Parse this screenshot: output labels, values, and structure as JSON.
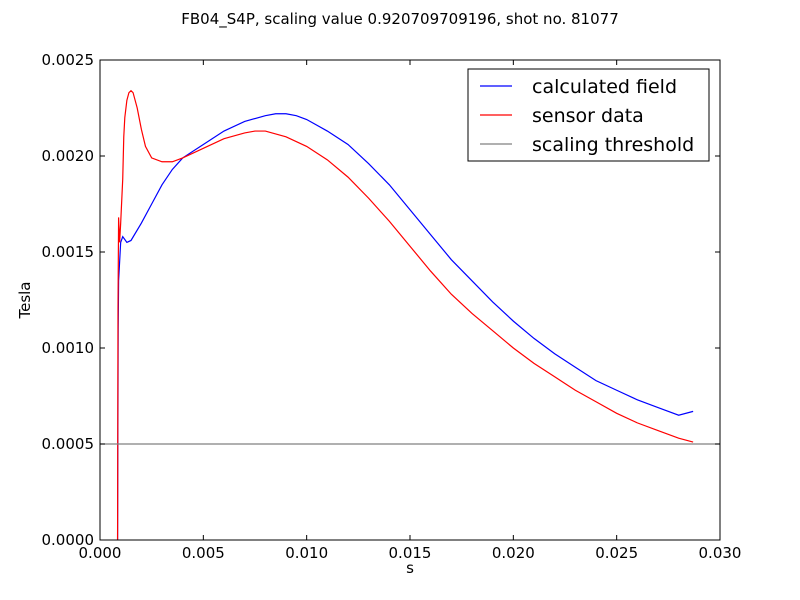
{
  "chart_data": {
    "type": "line",
    "title": "FB04_S4P, scaling value 0.920709709196, shot no. 81077",
    "xlabel": "s",
    "ylabel": "Tesla",
    "xlim": [
      0.0,
      0.03
    ],
    "ylim": [
      0.0,
      0.0025
    ],
    "x_ticks": [
      "0.000",
      "0.005",
      "0.010",
      "0.015",
      "0.020",
      "0.025",
      "0.030"
    ],
    "y_ticks": [
      "0.0000",
      "0.0005",
      "0.0010",
      "0.0015",
      "0.0020",
      "0.0025"
    ],
    "grid": false,
    "legend_position": "top-right",
    "series": [
      {
        "name": "calculated field",
        "color": "#0000ff",
        "points": [
          [
            0.00085,
            0.0
          ],
          [
            0.00088,
            0.0011
          ],
          [
            0.0009,
            0.00135
          ],
          [
            0.001,
            0.00155
          ],
          [
            0.0011,
            0.00158
          ],
          [
            0.0013,
            0.00155
          ],
          [
            0.0015,
            0.00156
          ],
          [
            0.002,
            0.00165
          ],
          [
            0.0025,
            0.00175
          ],
          [
            0.003,
            0.00185
          ],
          [
            0.0035,
            0.00193
          ],
          [
            0.004,
            0.00199
          ],
          [
            0.005,
            0.00206
          ],
          [
            0.006,
            0.00213
          ],
          [
            0.007,
            0.00218
          ],
          [
            0.008,
            0.00221
          ],
          [
            0.0085,
            0.00222
          ],
          [
            0.009,
            0.00222
          ],
          [
            0.0095,
            0.00221
          ],
          [
            0.01,
            0.00219
          ],
          [
            0.011,
            0.00213
          ],
          [
            0.012,
            0.00206
          ],
          [
            0.013,
            0.00196
          ],
          [
            0.014,
            0.00185
          ],
          [
            0.015,
            0.00172
          ],
          [
            0.016,
            0.00159
          ],
          [
            0.017,
            0.00146
          ],
          [
            0.018,
            0.00135
          ],
          [
            0.019,
            0.00124
          ],
          [
            0.02,
            0.00114
          ],
          [
            0.021,
            0.00105
          ],
          [
            0.022,
            0.00097
          ],
          [
            0.023,
            0.0009
          ],
          [
            0.024,
            0.00083
          ],
          [
            0.025,
            0.00078
          ],
          [
            0.026,
            0.00073
          ],
          [
            0.027,
            0.00069
          ],
          [
            0.028,
            0.00065
          ],
          [
            0.0287,
            0.00067
          ]
        ]
      },
      {
        "name": "sensor data",
        "color": "#ff0000",
        "points": [
          [
            0.00085,
            0.0
          ],
          [
            0.00087,
            0.0012
          ],
          [
            0.0009,
            0.00168
          ],
          [
            0.00095,
            0.00155
          ],
          [
            0.001,
            0.00165
          ],
          [
            0.0011,
            0.00188
          ],
          [
            0.00115,
            0.0021
          ],
          [
            0.0012,
            0.0022
          ],
          [
            0.0013,
            0.00229
          ],
          [
            0.0014,
            0.00233
          ],
          [
            0.0015,
            0.00234
          ],
          [
            0.0016,
            0.00233
          ],
          [
            0.0018,
            0.00225
          ],
          [
            0.002,
            0.00214
          ],
          [
            0.0022,
            0.00205
          ],
          [
            0.0025,
            0.00199
          ],
          [
            0.003,
            0.00197
          ],
          [
            0.0035,
            0.00197
          ],
          [
            0.004,
            0.00199
          ],
          [
            0.005,
            0.00204
          ],
          [
            0.006,
            0.00209
          ],
          [
            0.007,
            0.00212
          ],
          [
            0.0075,
            0.00213
          ],
          [
            0.008,
            0.00213
          ],
          [
            0.009,
            0.0021
          ],
          [
            0.01,
            0.00205
          ],
          [
            0.011,
            0.00198
          ],
          [
            0.012,
            0.00189
          ],
          [
            0.013,
            0.00178
          ],
          [
            0.014,
            0.00166
          ],
          [
            0.015,
            0.00153
          ],
          [
            0.016,
            0.0014
          ],
          [
            0.017,
            0.00128
          ],
          [
            0.018,
            0.00118
          ],
          [
            0.019,
            0.00109
          ],
          [
            0.02,
            0.001
          ],
          [
            0.021,
            0.00092
          ],
          [
            0.022,
            0.00085
          ],
          [
            0.023,
            0.00078
          ],
          [
            0.024,
            0.00072
          ],
          [
            0.025,
            0.00066
          ],
          [
            0.026,
            0.00061
          ],
          [
            0.027,
            0.00057
          ],
          [
            0.028,
            0.00053
          ],
          [
            0.0287,
            0.00051
          ]
        ]
      },
      {
        "name": "scaling threshold",
        "color": "#808080",
        "points": [
          [
            0.0,
            0.0005
          ],
          [
            0.03,
            0.0005
          ]
        ]
      }
    ]
  }
}
